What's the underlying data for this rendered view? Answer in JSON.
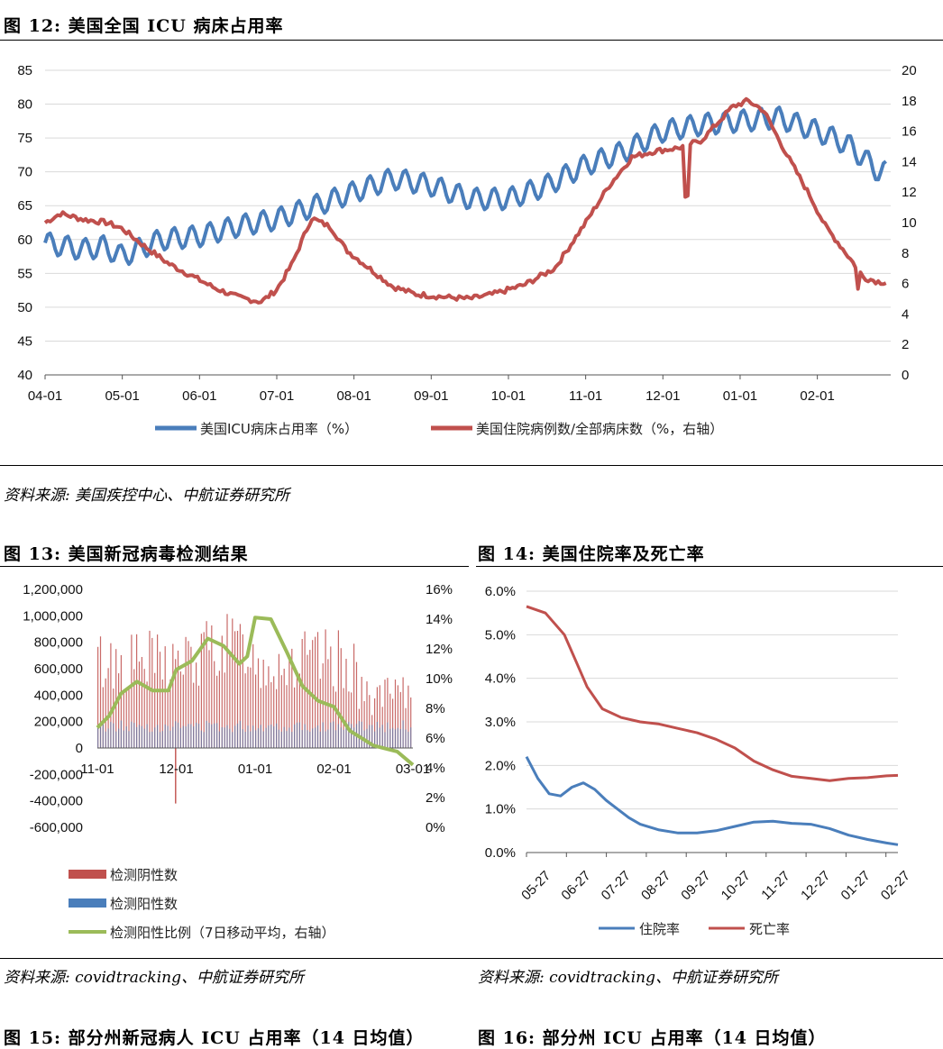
{
  "fig12": {
    "title": "图 12: 美国全国 ICU 病床占用率",
    "source": "资料来源: 美国疾控中心、中航证券研究所",
    "chart_data": {
      "type": "line",
      "title": "美国全国 ICU 病床占用率",
      "categories": [
        "04-01",
        "05-01",
        "06-01",
        "07-01",
        "08-01",
        "09-01",
        "10-01",
        "11-01",
        "12-01",
        "01-01",
        "02-01"
      ],
      "y_left_ticks": [
        "85",
        "80",
        "75",
        "70",
        "65",
        "60",
        "55",
        "50",
        "45",
        "40"
      ],
      "y_right_ticks": [
        "20",
        "18",
        "16",
        "14",
        "12",
        "10",
        "8",
        "6",
        "4",
        "2",
        "0"
      ],
      "ylim_left": [
        40,
        85
      ],
      "ylim_right": [
        0,
        20
      ],
      "series": [
        {
          "name": "美国ICU病床占用率（%）",
          "axis": "left",
          "color": "#4a7ebb",
          "x": [
            0,
            0.25,
            0.5,
            0.75,
            1,
            1.5,
            2,
            2.5,
            3,
            3.5,
            4,
            4.5,
            5,
            5.5,
            6,
            6.5,
            7,
            7.5,
            8,
            8.5,
            9,
            9.5,
            10,
            10.4,
            10.8
          ],
          "values": [
            59.5,
            59,
            58.5,
            59,
            57.5,
            60,
            60.5,
            62,
            63,
            65,
            67,
            69,
            68,
            66,
            66,
            68,
            71,
            73,
            76,
            77,
            77.5,
            78,
            76,
            74,
            70
          ]
        },
        {
          "name": "美国住院病例数/全部病床数（%，右轴）",
          "axis": "right",
          "color": "#c0504d",
          "x": [
            0,
            0.2,
            0.5,
            0.8,
            1,
            1.3,
            1.6,
            1.9,
            2.2,
            2.5,
            2.8,
            3,
            3.2,
            3.45,
            3.7,
            3.9,
            4.2,
            4.5,
            4.8,
            5.2,
            5.5,
            5.8,
            6.2,
            6.6,
            7,
            7.3,
            7.6,
            7.9,
            8.2,
            8.5,
            8.7,
            8.9,
            9.1,
            9.3,
            9.6,
            9.9,
            10.1,
            10.4,
            10.6,
            10.8
          ],
          "values": [
            10,
            10.6,
            10.2,
            10,
            9.6,
            8.4,
            7.3,
            6.5,
            5.7,
            5.1,
            4.8,
            5.6,
            7.3,
            10.3,
            9.7,
            8.2,
            7,
            5.8,
            5.3,
            5.1,
            5,
            5.3,
            5.9,
            7,
            10,
            12.4,
            14.3,
            14.7,
            14.9,
            15.4,
            16.5,
            17.6,
            18,
            17.4,
            14.5,
            11.8,
            9.8,
            7.8,
            6.4,
            6.1
          ]
        }
      ]
    }
  },
  "fig13": {
    "title": "图 13: 美国新冠病毒检测结果",
    "source": "资料来源: covidtracking、中航证券研究所",
    "chart_data": {
      "type": "bar",
      "categories": [
        "11-01",
        "12-01",
        "01-01",
        "02-01",
        "03-01"
      ],
      "y_left_ticks": [
        "1,200,000",
        "1,000,000",
        "800,000",
        "600,000",
        "400,000",
        "200,000",
        "0",
        "-200,000",
        "-400,000",
        "-600,000"
      ],
      "y_right_ticks": [
        "16%",
        "14%",
        "12%",
        "10%",
        "8%",
        "6%",
        "4%",
        "2%",
        "0%"
      ],
      "ylim_left": [
        -600000,
        1200000
      ],
      "ylim_right": [
        0,
        16
      ],
      "series": [
        {
          "name": "检测阴性数",
          "color": "#c0504d",
          "values_summary": "daily bars ~500,000-1,100,000; one negative bar ~-420,000 near 12-01"
        },
        {
          "name": "检测阳性数",
          "color": "#4a7ebb",
          "values_summary": "daily bars ~100,000-230,000"
        },
        {
          "name": "检测阳性比例（7日移动平均，右轴）",
          "color": "#9bbb59",
          "x": [
            0,
            0.15,
            0.3,
            0.5,
            0.7,
            0.9,
            1.0,
            1.2,
            1.4,
            1.6,
            1.8,
            1.9,
            2.0,
            2.2,
            2.4,
            2.6,
            2.8,
            3.0,
            3.2,
            3.5,
            3.8,
            4.0
          ],
          "values": [
            6.7,
            7.5,
            9,
            9.8,
            9.2,
            9.2,
            10.6,
            11.2,
            12.7,
            12.2,
            11,
            11.5,
            14.1,
            14,
            11.8,
            9.5,
            8.5,
            8.1,
            6.5,
            5.5,
            5.1,
            4.2
          ]
        }
      ]
    },
    "legend": [
      "检测阴性数",
      "检测阳性数",
      "检测阳性比例（7日移动平均，右轴）"
    ]
  },
  "fig14": {
    "title": "图 14: 美国住院率及死亡率",
    "source": "资料来源: covidtracking、中航证券研究所",
    "chart_data": {
      "type": "line",
      "categories": [
        "05-27",
        "06-27",
        "07-27",
        "08-27",
        "09-27",
        "10-27",
        "11-27",
        "12-27",
        "01-27",
        "02-27"
      ],
      "y_ticks": [
        "6.0%",
        "5.0%",
        "4.0%",
        "3.0%",
        "2.0%",
        "1.0%",
        "0.0%"
      ],
      "ylim": [
        0,
        6
      ],
      "series": [
        {
          "name": "住院率",
          "color": "#4a7ebb",
          "x": [
            0,
            0.3,
            0.6,
            0.9,
            1.2,
            1.5,
            1.8,
            2.1,
            2.4,
            2.7,
            3,
            3.5,
            4,
            4.5,
            5,
            5.5,
            6,
            6.5,
            7,
            7.5,
            8,
            8.5,
            9,
            9.5,
            9.8
          ],
          "values": [
            2.2,
            1.7,
            1.35,
            1.3,
            1.5,
            1.6,
            1.45,
            1.2,
            1.0,
            0.8,
            0.65,
            0.52,
            0.45,
            0.45,
            0.5,
            0.6,
            0.7,
            0.72,
            0.67,
            0.65,
            0.55,
            0.4,
            0.3,
            0.22,
            0.18
          ]
        },
        {
          "name": "死亡率",
          "color": "#c0504d",
          "x": [
            0,
            0.5,
            1,
            1.3,
            1.6,
            2,
            2.5,
            3,
            3.5,
            4,
            4.5,
            5,
            5.5,
            6,
            6.5,
            7,
            7.5,
            8,
            8.5,
            9,
            9.5,
            9.8
          ],
          "values": [
            5.65,
            5.5,
            5.0,
            4.4,
            3.8,
            3.3,
            3.1,
            3.0,
            2.95,
            2.85,
            2.75,
            2.6,
            2.4,
            2.1,
            1.9,
            1.75,
            1.7,
            1.65,
            1.7,
            1.72,
            1.76,
            1.77
          ]
        }
      ]
    },
    "legend": [
      "住院率",
      "死亡率"
    ]
  },
  "fig15": {
    "title": "图 15: 部分州新冠病人 ICU 占用率（14 日均值）"
  },
  "fig16": {
    "title": "图 16: 部分州 ICU 占用率（14 日均值）"
  }
}
